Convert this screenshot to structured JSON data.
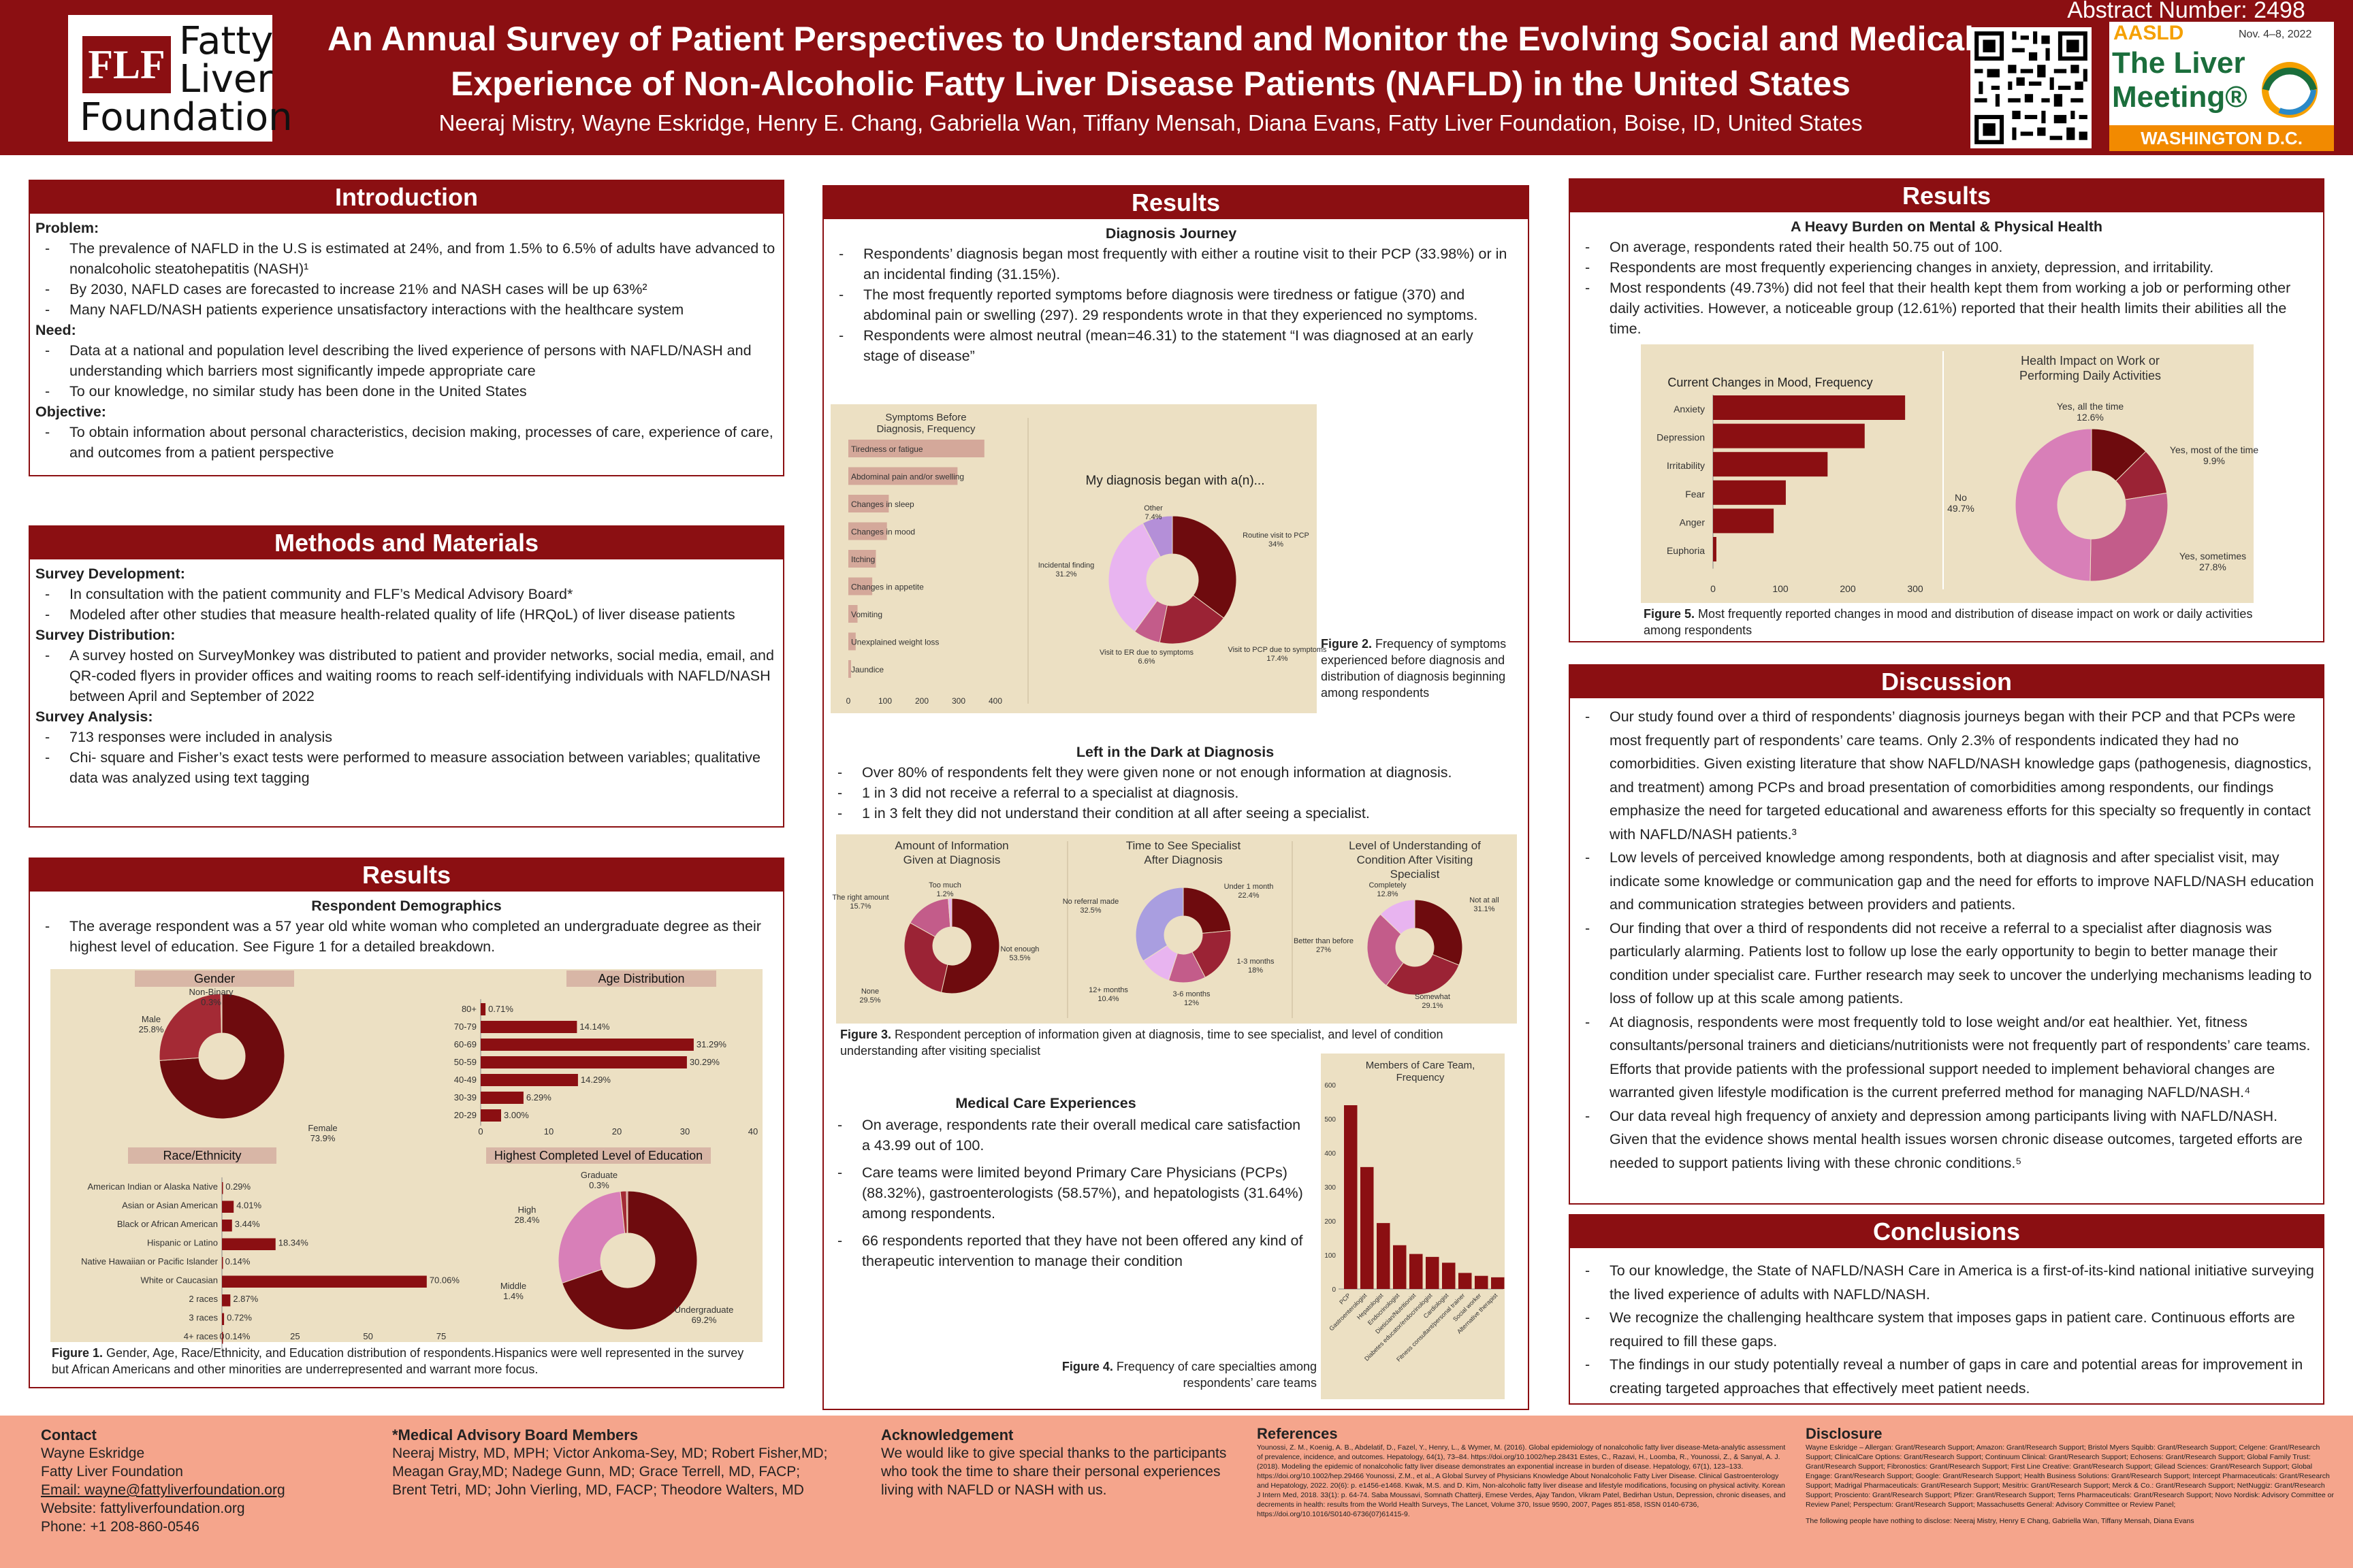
{
  "header": {
    "title_line1": "An Annual Survey of Patient Perspectives to Understand and Monitor the Evolving Social and Medical",
    "title_line2": "Experience of Non-Alcoholic Fatty Liver Disease Patients (NAFLD) in the United States",
    "authors": "Neeraj Mistry, Wayne Eskridge, Henry E. Chang, Gabriella Wan, Tiffany Mensah, Diana Evans, Fatty Liver Foundation, Boise, ID, United States",
    "abstract": "Abstract Number: 2498",
    "logo": {
      "mark": "FLF",
      "w1": "Fatty",
      "w2": "Liver",
      "w3": "Foundation"
    },
    "aasld": {
      "name": "AASLD",
      "dates": "Nov. 4–8, 2022",
      "meeting1": "The Liver",
      "meeting2": "Meeting®",
      "location": "WASHINGTON D.C."
    }
  },
  "intro": {
    "title": "Introduction",
    "problem": "Problem:",
    "p1": "The prevalence of NAFLD in the U.S is estimated at 24%, and from 1.5% to 6.5% of adults have advanced to nonalcoholic steatohepatitis (NASH)¹",
    "p2": "By 2030, NAFLD cases are forecasted to increase 21% and NASH cases will be up 63%²",
    "p3": "Many NAFLD/NASH patients experience unsatisfactory interactions with the healthcare system",
    "need": "Need:",
    "n1": "Data at a national and population level describing the lived experience of persons with NAFLD/NASH and understanding which barriers most significantly impede appropriate care",
    "n2": "To our knowledge, no similar study has been done in the United States",
    "objective": "Objective:",
    "o1": "To obtain information about personal characteristics, decision making, processes of care, experience of care, and outcomes from a patient perspective"
  },
  "methods": {
    "title": "Methods and Materials",
    "dev": "Survey Development:",
    "d1": "In consultation with the patient community and FLF’s Medical Advisory Board*",
    "d2": "Modeled after other studies that measure health-related quality of life (HRQoL) of liver disease patients",
    "dist": "Survey Distribution:",
    "s1": "A survey hosted on SurveyMonkey was distributed to patient and provider networks, social media, email, and QR-coded flyers in provider offices and waiting rooms to reach self-identifying individuals with NAFLD/NASH between April and September of 2022",
    "anal": "Survey Analysis:",
    "a1": "713 responses were included in analysis",
    "a2": "Chi- square and Fisher’s exact tests were performed to measure association between variables; qualitative data was analyzed using text tagging"
  },
  "results1": {
    "title": "Results",
    "sub": "Respondent Demographics",
    "b1": "The average respondent was a 57 year old white woman who completed an undergraduate degree as their highest level of education. See Figure 1 for a detailed breakdown.",
    "caption_b": "Figure 1.",
    "caption": " Gender, Age, Race/Ethnicity, and Education distribution of respondents.Hispanics were well represented in the survey but African Americans and other minorities are underrepresented and warrant more focus."
  },
  "chart_data": [
    {
      "type": "pie",
      "title": "Gender",
      "labels": [
        "Female",
        "Male",
        "Non-Binary"
      ],
      "values": [
        73.9,
        25.8,
        0.3
      ],
      "value_labels": [
        "73.9%",
        "25.8%",
        "0.3%"
      ],
      "colors": [
        "#6e0b0e",
        "#a42a35",
        "#c46a86"
      ]
    },
    {
      "type": "bar",
      "title": "Age Distribution",
      "categories": [
        "80+",
        "70-79",
        "60-69",
        "50-59",
        "40-49",
        "30-39",
        "20-29"
      ],
      "values": [
        0.71,
        14.14,
        31.29,
        30.29,
        14.29,
        6.29,
        3.0
      ],
      "value_labels": [
        "0.71%",
        "14.14%",
        "31.29%",
        "30.29%",
        "14.29%",
        "6.29%",
        "3.00%"
      ],
      "xticks": [
        "0",
        "10",
        "20",
        "30",
        "40"
      ],
      "xlim": [
        0,
        40
      ]
    },
    {
      "type": "bar",
      "title": "Race/Ethnicity",
      "categories": [
        "American Indian or Alaska Native",
        "Asian or Asian American",
        "Black or African American",
        "Hispanic or Latino",
        "Native Hawaiian or Pacific Islander",
        "White or Caucasian",
        "2 races",
        "3 races",
        "4+ races"
      ],
      "values": [
        0.29,
        4.01,
        3.44,
        18.34,
        0.14,
        70.06,
        2.87,
        0.72,
        0.14
      ],
      "value_labels": [
        "0.29%",
        "4.01%",
        "3.44%",
        "18.34%",
        "0.14%",
        "70.06%",
        "2.87%",
        "0.72%",
        "0.14%"
      ],
      "xticks": [
        "0",
        "25",
        "50",
        "75"
      ],
      "xlim": [
        0,
        75
      ]
    },
    {
      "type": "pie",
      "title": "Highest Completed Level of Education",
      "labels": [
        "Undergraduate",
        "High",
        "Middle",
        "Graduate"
      ],
      "values": [
        69.2,
        28.4,
        1.4,
        0.3
      ],
      "value_labels": [
        "69.2%",
        "28.4%",
        "1.4%",
        "0.3%"
      ],
      "colors": [
        "#6e0b0e",
        "#d87fb8",
        "#a42a35",
        "#c46a86"
      ]
    },
    {
      "type": "bar",
      "title": "Symptoms Before Diagnosis, Frequency",
      "categories": [
        "Tiredness or fatigue",
        "Abdominal pain and/or swelling",
        "Changes in sleep",
        "Changes in mood",
        "Itching",
        "Changes in appetite",
        "Vomiting",
        "Unexplained weight loss",
        "Jaundice"
      ],
      "values": [
        370,
        297,
        110,
        105,
        75,
        65,
        25,
        20,
        5
      ],
      "xticks": [
        "0",
        "100",
        "200",
        "300",
        "400"
      ],
      "xlim": [
        0,
        400
      ]
    },
    {
      "type": "pie",
      "title": "My diagnosis began with a(n)...",
      "labels": [
        "Routine visit to PCP",
        "Visit to PCP due to symptoms",
        "Visit to ER due to symptoms",
        "Incidental finding",
        "Other"
      ],
      "values": [
        34,
        17.4,
        6.6,
        31.2,
        7.4
      ],
      "value_labels": [
        "34%",
        "17.4%",
        "6.6%",
        "31.2%",
        "7.4%"
      ],
      "colors": [
        "#6e0b0e",
        "#9b2335",
        "#c35c8a",
        "#e8b4f0",
        "#b48fd8"
      ]
    },
    {
      "type": "pie",
      "title": "Amount of Information Given at Diagnosis",
      "labels": [
        "Not enough",
        "None",
        "The right amount",
        "Too much"
      ],
      "values": [
        53.5,
        29.5,
        15.7,
        1.2
      ],
      "value_labels": [
        "53.5%",
        "29.5%",
        "15.7%",
        "1.2%"
      ],
      "colors": [
        "#6e0b0e",
        "#9b2335",
        "#c35c8a",
        "#e8b4f0"
      ]
    },
    {
      "type": "pie",
      "title": "Time to See Specialist After Diagnosis",
      "labels": [
        "Under 1 month",
        "1-3 months",
        "3-6 months",
        "12+ months",
        "No referral made"
      ],
      "values": [
        22.4,
        18,
        12,
        10.4,
        32.5
      ],
      "value_labels": [
        "22.4%",
        "18%",
        "12%",
        "10.4%",
        "32.5%"
      ],
      "colors": [
        "#6e0b0e",
        "#9b2335",
        "#c35c8a",
        "#e8b4f0",
        "#a99ee0"
      ]
    },
    {
      "type": "pie",
      "title": "Level of Understanding of Condition After Visiting Specialist",
      "labels": [
        "Not at all",
        "Somewhat",
        "Better than before",
        "Completely"
      ],
      "values": [
        31.1,
        29.1,
        27,
        12.8
      ],
      "value_labels": [
        "31.1%",
        "29.1%",
        "27%",
        "12.8%"
      ],
      "colors": [
        "#6e0b0e",
        "#9b2335",
        "#c35c8a",
        "#e8b4f0"
      ]
    },
    {
      "type": "bar",
      "title": "Members of Care Team, Frequency",
      "categories": [
        "PCP",
        "Gastroenterologist",
        "Hepatologist",
        "Endocrinologist",
        "Dietician/Nutritionist",
        "Diabetes educator/endocrinologist",
        "Cardiologist",
        "Fitness consultant/personal trainer",
        "Social worker",
        "Alternative therapist"
      ],
      "values": [
        630,
        418,
        226,
        150,
        120,
        110,
        90,
        55,
        45,
        40
      ],
      "yticks": [
        "0",
        "100",
        "200",
        "300",
        "400",
        "500",
        "600"
      ],
      "ylim": [
        0,
        700
      ]
    },
    {
      "type": "bar",
      "title": "Current Changes in Mood, Frequency",
      "categories": [
        "Anxiety",
        "Depression",
        "Irritability",
        "Fear",
        "Anger",
        "Euphoria"
      ],
      "values": [
        285,
        225,
        170,
        108,
        90,
        5
      ],
      "xticks": [
        "0",
        "100",
        "200",
        "300"
      ],
      "xlim": [
        0,
        300
      ]
    },
    {
      "type": "pie",
      "title": "Health Impact on Work or Performing Daily Activities",
      "labels": [
        "Yes, all the time",
        "Yes, most of the time",
        "Yes, sometimes",
        "No"
      ],
      "values": [
        12.6,
        9.9,
        27.8,
        49.7
      ],
      "value_labels": [
        "12.6%",
        "9.9%",
        "27.8%",
        "49.7%"
      ],
      "colors": [
        "#6e0b0e",
        "#9b2335",
        "#c35c8a",
        "#d87fb8"
      ]
    }
  ],
  "results2": {
    "title": "Results",
    "sub1": "Diagnosis Journey",
    "b1": "Respondents’ diagnosis began most frequently with either a routine visit to their PCP (33.98%) or in an incidental finding (31.15%).",
    "b2": "The most frequently reported symptoms before diagnosis were tiredness or fatigue (370) and abdominal pain or swelling (297). 29 respondents wrote in that they experienced no symptoms.",
    "b3": "Respondents were almost neutral (mean=46.31) to the statement “I was diagnosed at an early stage of disease”",
    "fig2_b": "Figure 2.",
    "fig2": " Frequency of symptoms experienced before diagnosis and distribution of diagnosis beginning among respondents",
    "sub2": "Left in the Dark at Diagnosis",
    "c1": "Over 80% of respondents felt they were given none or not enough information at diagnosis.",
    "c2": "1 in 3 did not receive a referral to a specialist at diagnosis.",
    "c3": "1 in 3 felt they did not understand their condition at all after seeing a specialist.",
    "fig3_b": "Figure 3.",
    "fig3": " Respondent perception of information given at diagnosis, time to see specialist, and level of condition understanding after visiting specialist",
    "sub3": "Medical Care Experiences",
    "m1": "On average, respondents rate their overall medical care satisfaction a 43.99 out of 100.",
    "m2": "Care teams were limited beyond Primary Care Physicians (PCPs) (88.32%), gastroenterologists (58.57%), and hepatologists (31.64%) among respondents.",
    "m3": "66 respondents reported that they have not been offered any kind of therapeutic intervention to manage their condition",
    "fig4_b": "Figure 4.",
    "fig4": " Frequency of care specialties among respondents’ care teams"
  },
  "results3": {
    "title": "Results",
    "sub": "A Heavy Burden on Mental & Physical Health",
    "b1": "On average, respondents rated their health 50.75 out of 100.",
    "b2": "Respondents are most frequently experiencing changes in anxiety, depression, and irritability.",
    "b3": "Most respondents (49.73%) did not feel that their health kept them from working a job or performing other daily activities. However, a noticeable group (12.61%) reported that their health limits their abilities all the time.",
    "fig5_b": "Figure 5.",
    "fig5": " Most frequently reported changes in mood and distribution of disease impact on work or daily activities among respondents"
  },
  "discussion": {
    "title": "Discussion",
    "d1": "Our study found over a third of respondents’ diagnosis journeys began with their PCP and that PCPs were most frequently part of respondents’ care teams. Only 2.3% of respondents indicated they had no comorbidities. Given existing literature that show NAFLD/NASH knowledge gaps (pathogenesis, diagnostics, and treatment) among PCPs and broad presentation of comorbidities among respondents, our findings emphasize the need for targeted educational and awareness efforts for this specialty so frequently in contact with NAFLD/NASH patients.³",
    "d2": "Low levels of perceived knowledge among respondents, both at diagnosis and after specialist visit, may indicate some knowledge or communication gap and the need for efforts to improve NAFLD/NASH education and communication strategies between providers and patients.",
    "d3": "Our finding that over a third of respondents did not receive a referral to a specialist after diagnosis was particularly alarming. Patients lost to follow up lose the early opportunity to begin to better manage their condition under specialist care. Further research may seek to uncover the underlying mechanisms leading to loss of follow up at this scale among patients.",
    "d4": "At diagnosis, respondents were most frequently told to lose weight and/or eat healthier. Yet, fitness consultants/personal trainers and dieticians/nutritionists were not frequently part of respondents’ care teams. Efforts that provide patients with the professional support needed to implement behavioral changes are warranted given lifestyle modification is the current preferred method for managing NAFLD/NASH.⁴",
    "d5": "Our data reveal high frequency of anxiety and depression among participants living with NAFLD/NASH. Given that the evidence shows mental health issues worsen chronic disease outcomes, targeted efforts are needed to support patients living with these chronic conditions.⁵"
  },
  "conclusions": {
    "title": "Conclusions",
    "c1": "To our knowledge, the State of NAFLD/NASH Care in America is a first-of-its-kind national initiative surveying the lived experience of adults with NAFLD/NASH.",
    "c2": "We recognize the challenging healthcare system that imposes gaps in patient care. Continuous efforts are required to fill these gaps.",
    "c3": "The findings in our study potentially reveal a number of gaps in care and potential areas for improvement in creating targeted approaches that effectively meet patient needs."
  },
  "footer": {
    "contact_h": "Contact",
    "contact": [
      "Wayne Eskridge",
      "Fatty Liver Foundation",
      "Email: wayne@fattyliverfoundation.org",
      "Website: fattyliverfoundation.org",
      "Phone: +1 208-860-0546"
    ],
    "mab_h": "*Medical Advisory Board Members",
    "mab": "Neeraj Mistry, MD, MPH; Victor Ankoma-Sey, MD; Robert Fisher,MD; Meagan Gray,MD; Nadege Gunn, MD; Grace Terrell, MD, FACP; Brent Tetri, MD; John Vierling, MD, FACP; Theodore Walters, MD",
    "ack_h": "Acknowledgement",
    "ack": "We would like to give special thanks to the participants who took the time to share their personal experiences living with NAFLD or NASH with us.",
    "ref_h": "References",
    "refs": "Younossi, Z. M., Koenig, A. B., Abdelatif, D., Fazel, Y., Henry, L., & Wymer, M. (2016). Global epidemiology of nonalcoholic fatty liver disease-Meta-analytic assessment of prevalence, incidence, and outcomes. Hepatology, 64(1), 73–84. https://doi.org/10.1002/hep.28431 Estes, C., Razavi, H., Loomba, R., Younossi, Z., & Sanyal, A. J. (2018). Modeling the epidemic of nonalcoholic fatty liver disease demonstrates an exponential increase in burden of disease. Hepatology, 67(1), 123–133. https://doi.org/10.1002/hep.29466 Younossi, Z.M., et al., A Global Survey of Physicians Knowledge About Nonalcoholic Fatty Liver Disease. Clinical Gastroenterology and Hepatology, 2022. 20(6): p. e1456-e1468. Kwak, M.S. and D. Kim, Non-alcoholic fatty liver disease and lifestyle modifications, focusing on physical activity. Korean J Intern Med, 2018. 33(1): p. 64-74. Saba Moussavi, Somnath Chatterji, Emese Verdes, Ajay Tandon, Vikram Patel, Bedirhan Ustun, Depression, chronic diseases, and decrements in health: results from the World Health Surveys, The Lancet, Volume 370, Issue 9590, 2007, Pages 851-858, ISSN 0140-6736, https://doi.org/10.1016/S0140-6736(07)61415-9.",
    "disc_h": "Disclosure",
    "disc": "Wayne Eskridge – Allergan: Grant/Research Support; Amazon: Grant/Research Support; Bristol Myers Squibb: Grant/Research Support; Celgene: Grant/Research Support; ClinicalCare Options: Grant/Research Support; Continuum Clinical: Grant/Research Support; Echosens: Grant/Research Support; Global Family Trust: Grant/Research Support; Fibronostics: Grant/Research Support; First Line Creative: Grant/Research Support; Gilead Sciences: Grant/Research Support; Global Engage: Grant/Research Support; Google: Grant/Research Support; Health Business Solutions: Grant/Research Support; Intercept Pharmaceuticals: Grant/Research Support; Madrigal Pharmaceuticals: Grant/Research Support; Mesitrix: Grant/Research Support; Merck & Co.: Grant/Research Support; NetNuggiz: Grant/Research Support; Prosciento: Grant/Research Support; Pfizer: Grant/Research Support; Terns Pharmaceuticals: Grant/Research Support; Novo Nordisk: Advisory Committee or Review Panel; Perspectum: Grant/Research Support; Massachusetts General: Advisory Committee or Review Panel;",
    "disc2": "The following people have nothing to disclose: Neeraj Mistry, Henry E Chang, Gabriella Wan, Tiffany Mensah, Diana Evans"
  }
}
